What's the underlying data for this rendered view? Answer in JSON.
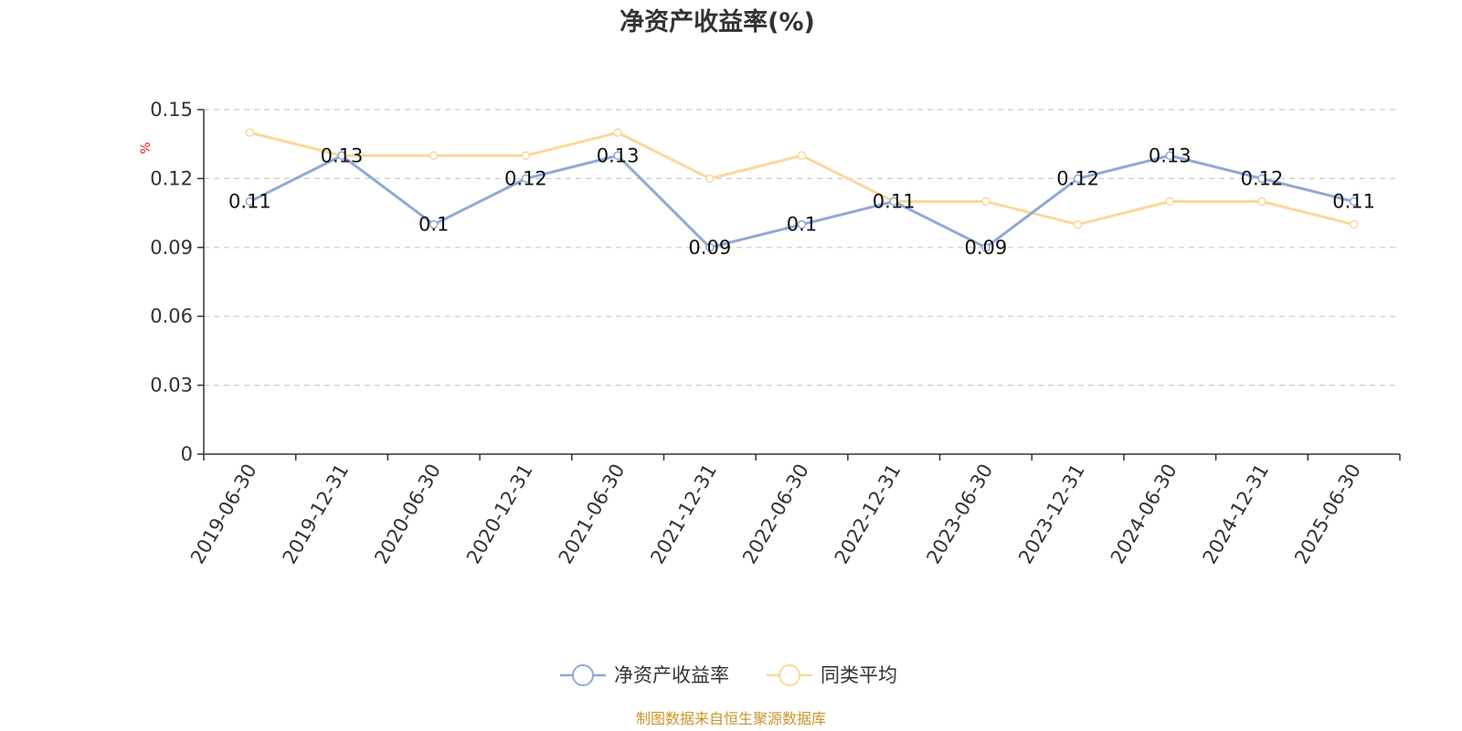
{
  "chart_data": {
    "type": "line",
    "title": "净资产收益率(%)",
    "ylabel": "%",
    "xlabel": "",
    "categories": [
      "2019-06-30",
      "2019-12-31",
      "2020-06-30",
      "2020-12-31",
      "2021-06-30",
      "2021-12-31",
      "2022-06-30",
      "2022-12-31",
      "2023-06-30",
      "2023-12-31",
      "2024-06-30",
      "2024-12-31",
      "2025-06-30"
    ],
    "ylim": [
      0,
      0.15
    ],
    "yticks": [
      "0",
      "0.03",
      "0.06",
      "0.09",
      "0.12",
      "0.15"
    ],
    "grid": true,
    "legend_position": "bottom",
    "series": [
      {
        "name": "净资产收益率",
        "color": "#8eaad6",
        "values": [
          0.11,
          0.13,
          0.1,
          0.12,
          0.13,
          0.09,
          0.1,
          0.11,
          0.09,
          0.12,
          0.13,
          0.12,
          0.11
        ],
        "labels": [
          "0.11",
          "0.13",
          "0.1",
          "0.12",
          "0.13",
          "0.09",
          "0.1",
          "0.11",
          "0.09",
          "0.12",
          "0.13",
          "0.12",
          "0.11"
        ]
      },
      {
        "name": "同类平均",
        "color": "#f9d89a",
        "values": [
          0.14,
          0.13,
          0.13,
          0.13,
          0.14,
          0.12,
          0.13,
          0.11,
          0.11,
          0.1,
          0.11,
          0.11,
          0.1
        ]
      }
    ],
    "unit_color": "#e02020",
    "source": "制图数据来自恒生聚源数据库",
    "source_color": "#c8962a"
  }
}
